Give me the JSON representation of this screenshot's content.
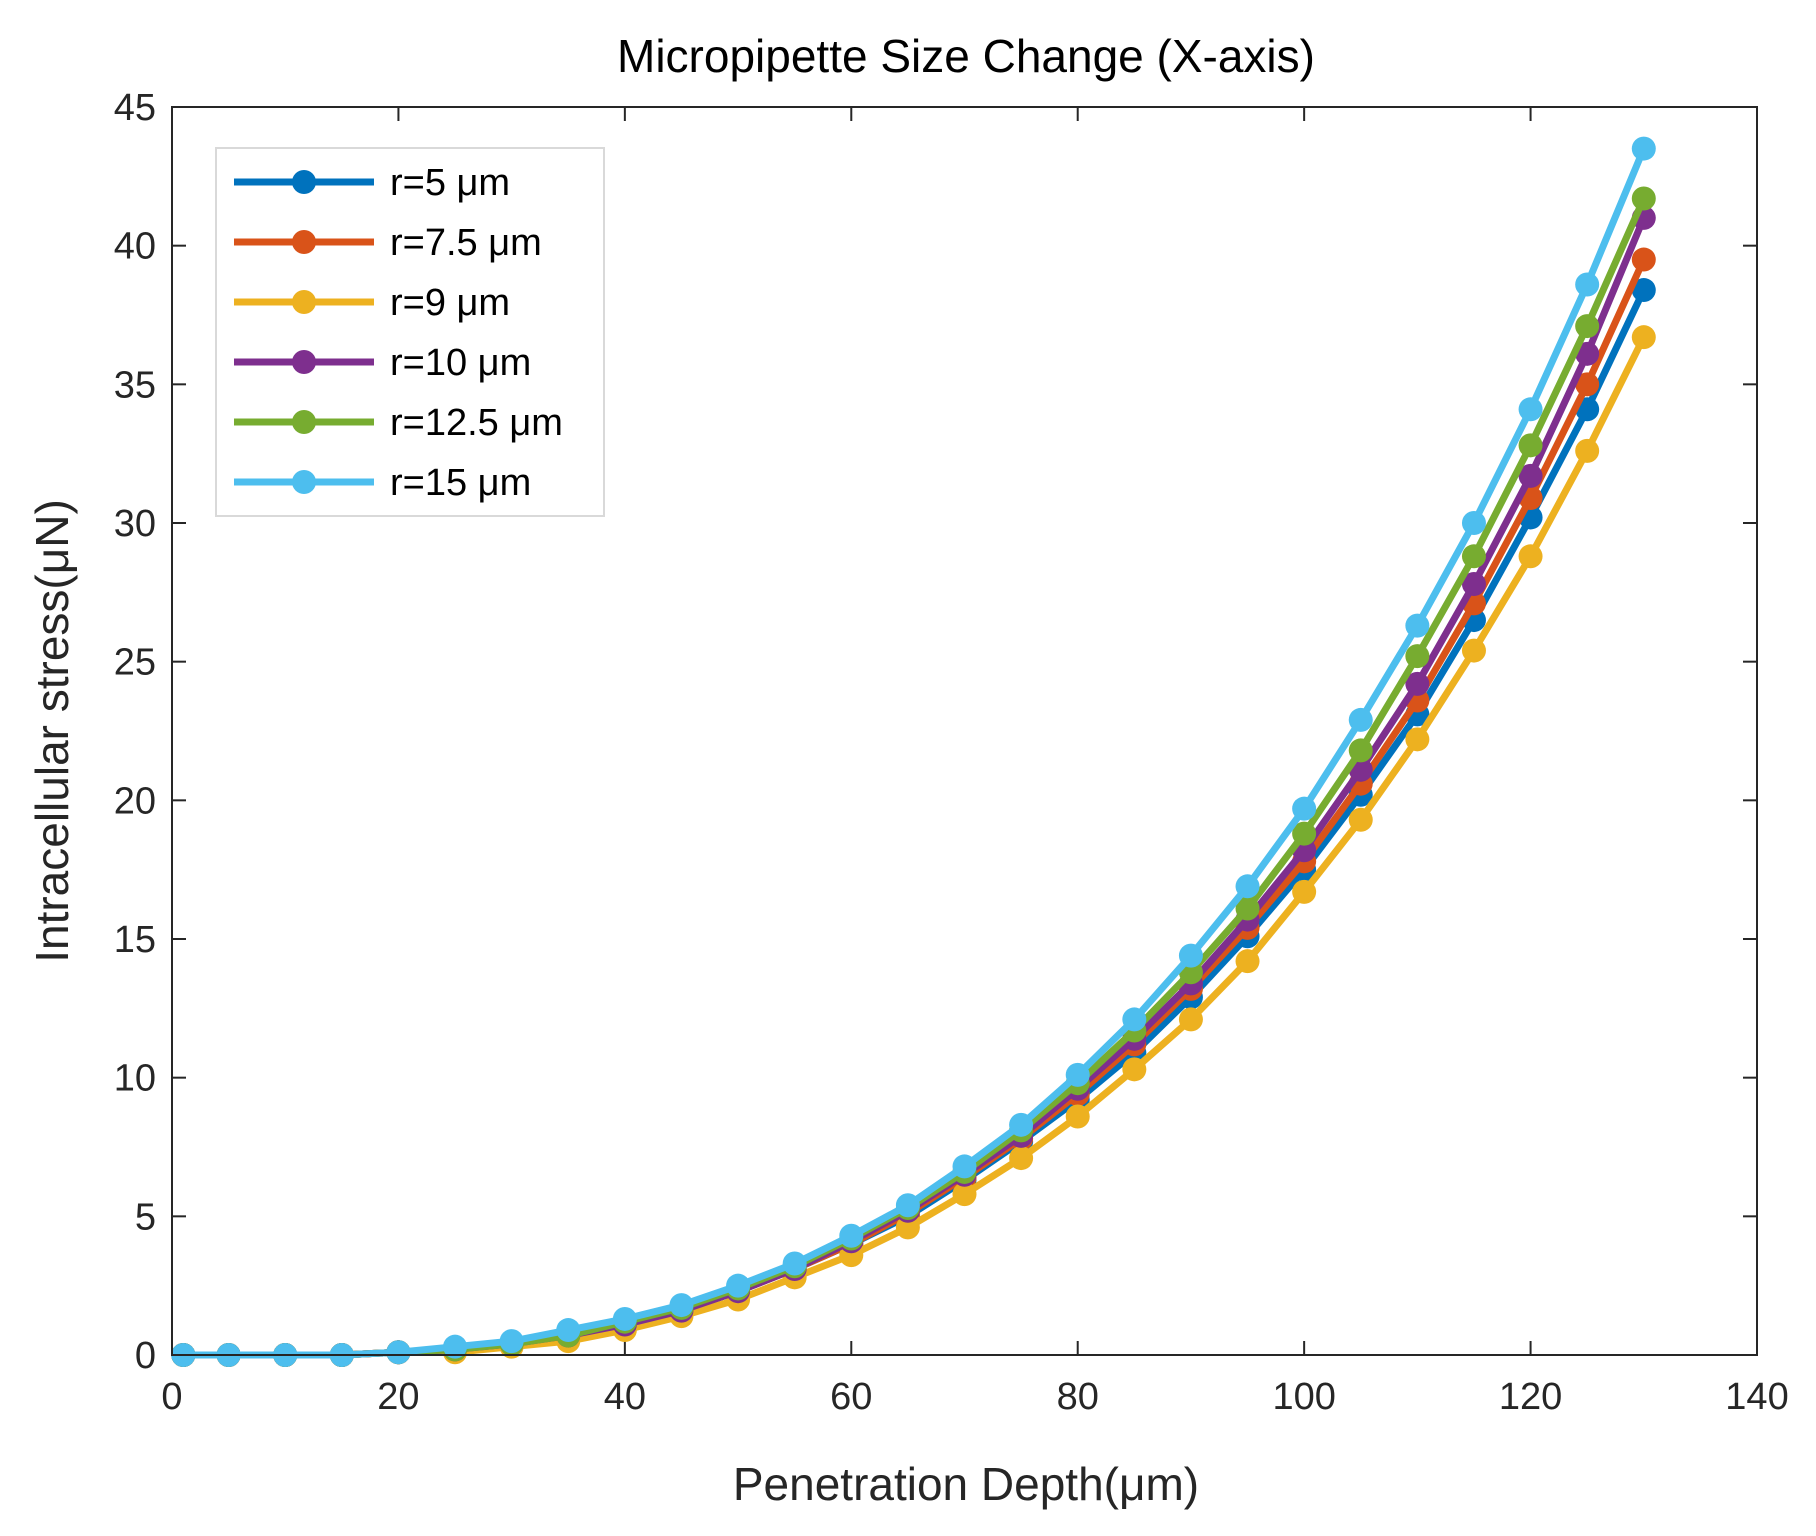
{
  "chart_data": {
    "type": "line",
    "title": "Micropipette Size Change (X-axis)",
    "xlabel": "Penetration Depth(μm)",
    "ylabel": "Intracellular stress(μN)",
    "xlim": [
      0,
      140
    ],
    "ylim": [
      0,
      45
    ],
    "xticks": [
      0,
      20,
      40,
      60,
      80,
      100,
      120,
      140
    ],
    "yticks": [
      0,
      5,
      10,
      15,
      20,
      25,
      30,
      35,
      40,
      45
    ],
    "grid": false,
    "legend_position": "top-left",
    "x": [
      1,
      5,
      10,
      15,
      20,
      25,
      30,
      35,
      40,
      45,
      50,
      55,
      60,
      65,
      70,
      75,
      80,
      85,
      90,
      95,
      100,
      105,
      110,
      115,
      120,
      125,
      130
    ],
    "series": [
      {
        "name": "r=5 μm",
        "color": "#0072BD",
        "values": [
          0,
          0,
          0,
          0,
          0.1,
          0.2,
          0.4,
          0.7,
          1.1,
          1.6,
          2.3,
          3.1,
          4.0,
          5.0,
          6.3,
          7.7,
          9.2,
          10.9,
          12.9,
          15.1,
          17.5,
          20.2,
          23.1,
          26.5,
          30.2,
          34.1,
          38.4
        ]
      },
      {
        "name": "r=7.5 μm",
        "color": "#D95319",
        "values": [
          0,
          0,
          0,
          0,
          0.1,
          0.2,
          0.4,
          0.7,
          1.1,
          1.6,
          2.3,
          3.1,
          4.0,
          5.1,
          6.4,
          7.8,
          9.4,
          11.2,
          13.2,
          15.4,
          17.8,
          20.6,
          23.6,
          27.1,
          30.9,
          35.0,
          39.5
        ]
      },
      {
        "name": "r=9 μm",
        "color": "#EDB120",
        "values": [
          0,
          0,
          0,
          0,
          0.1,
          0.1,
          0.3,
          0.5,
          0.9,
          1.4,
          2.0,
          2.8,
          3.6,
          4.6,
          5.8,
          7.1,
          8.6,
          10.3,
          12.1,
          14.2,
          16.7,
          19.3,
          22.2,
          25.4,
          28.8,
          32.6,
          36.7
        ]
      },
      {
        "name": "r=10 μm",
        "color": "#7E2F8E",
        "values": [
          0,
          0,
          0,
          0,
          0.1,
          0.2,
          0.4,
          0.7,
          1.1,
          1.6,
          2.3,
          3.1,
          4.1,
          5.2,
          6.5,
          7.9,
          9.6,
          11.4,
          13.4,
          15.7,
          18.2,
          21.1,
          24.2,
          27.8,
          31.7,
          36.1,
          41.0
        ]
      },
      {
        "name": "r=12.5 μm",
        "color": "#77AC30",
        "values": [
          0,
          0,
          0,
          0,
          0.1,
          0.2,
          0.4,
          0.7,
          1.2,
          1.7,
          2.4,
          3.2,
          4.2,
          5.3,
          6.6,
          8.1,
          9.8,
          11.7,
          13.8,
          16.1,
          18.8,
          21.8,
          25.2,
          28.8,
          32.8,
          37.1,
          41.7
        ]
      },
      {
        "name": "r=15 μm",
        "color": "#4DBEEE",
        "values": [
          0,
          0,
          0,
          0,
          0.1,
          0.3,
          0.5,
          0.9,
          1.3,
          1.8,
          2.5,
          3.3,
          4.3,
          5.4,
          6.8,
          8.3,
          10.1,
          12.1,
          14.4,
          16.9,
          19.7,
          22.9,
          26.3,
          30.0,
          34.1,
          38.6,
          43.5
        ]
      }
    ]
  }
}
